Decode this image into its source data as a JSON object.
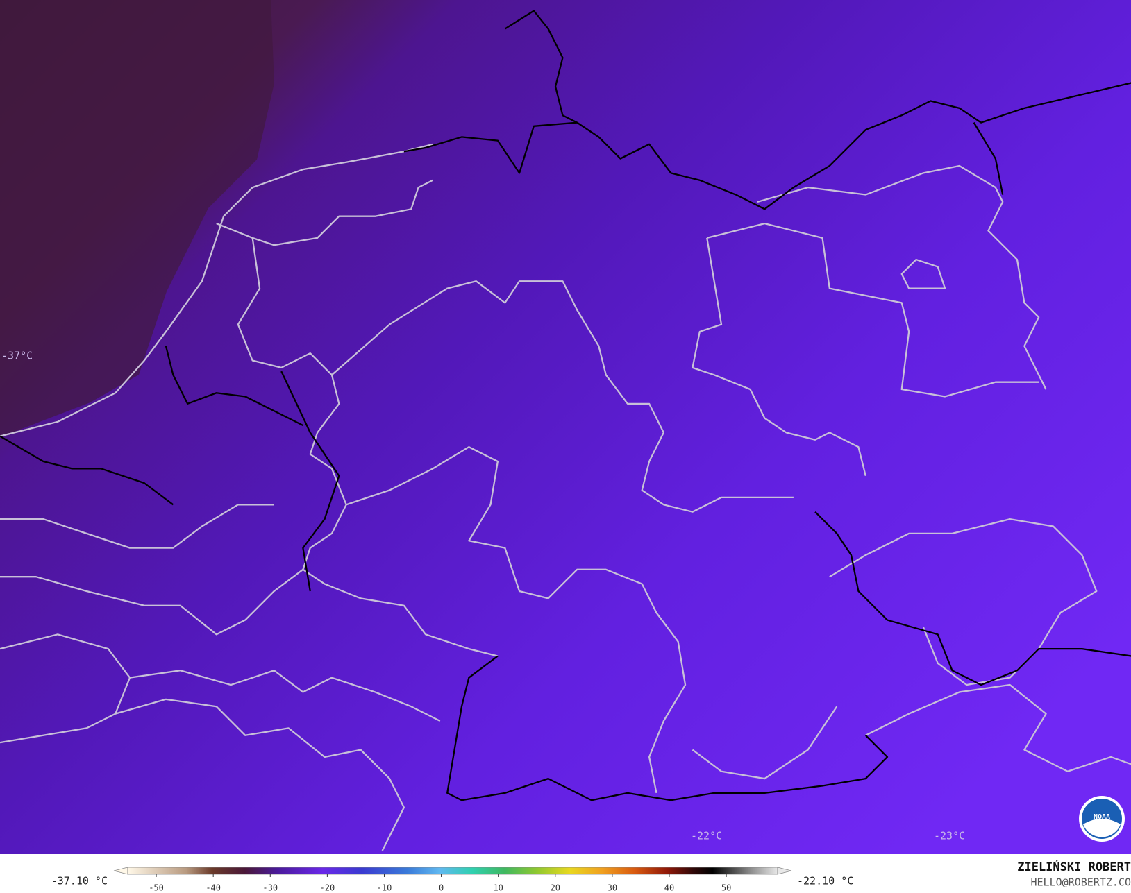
{
  "map": {
    "labels": [
      "-37°C",
      "-22°C",
      "-23°C"
    ],
    "logo_text": "NOAA"
  },
  "colorbar": {
    "min_label": "-37.10 °C",
    "max_label": "-22.10 °C",
    "lim": [
      -55,
      59
    ],
    "ticks": [
      -50,
      -40,
      -30,
      -20,
      -10,
      0,
      10,
      20,
      30,
      40,
      50
    ]
  },
  "credits": {
    "author": "ZIELIŃSKI ROBERT",
    "email": "HELLO@ROBERTZ.CO"
  }
}
